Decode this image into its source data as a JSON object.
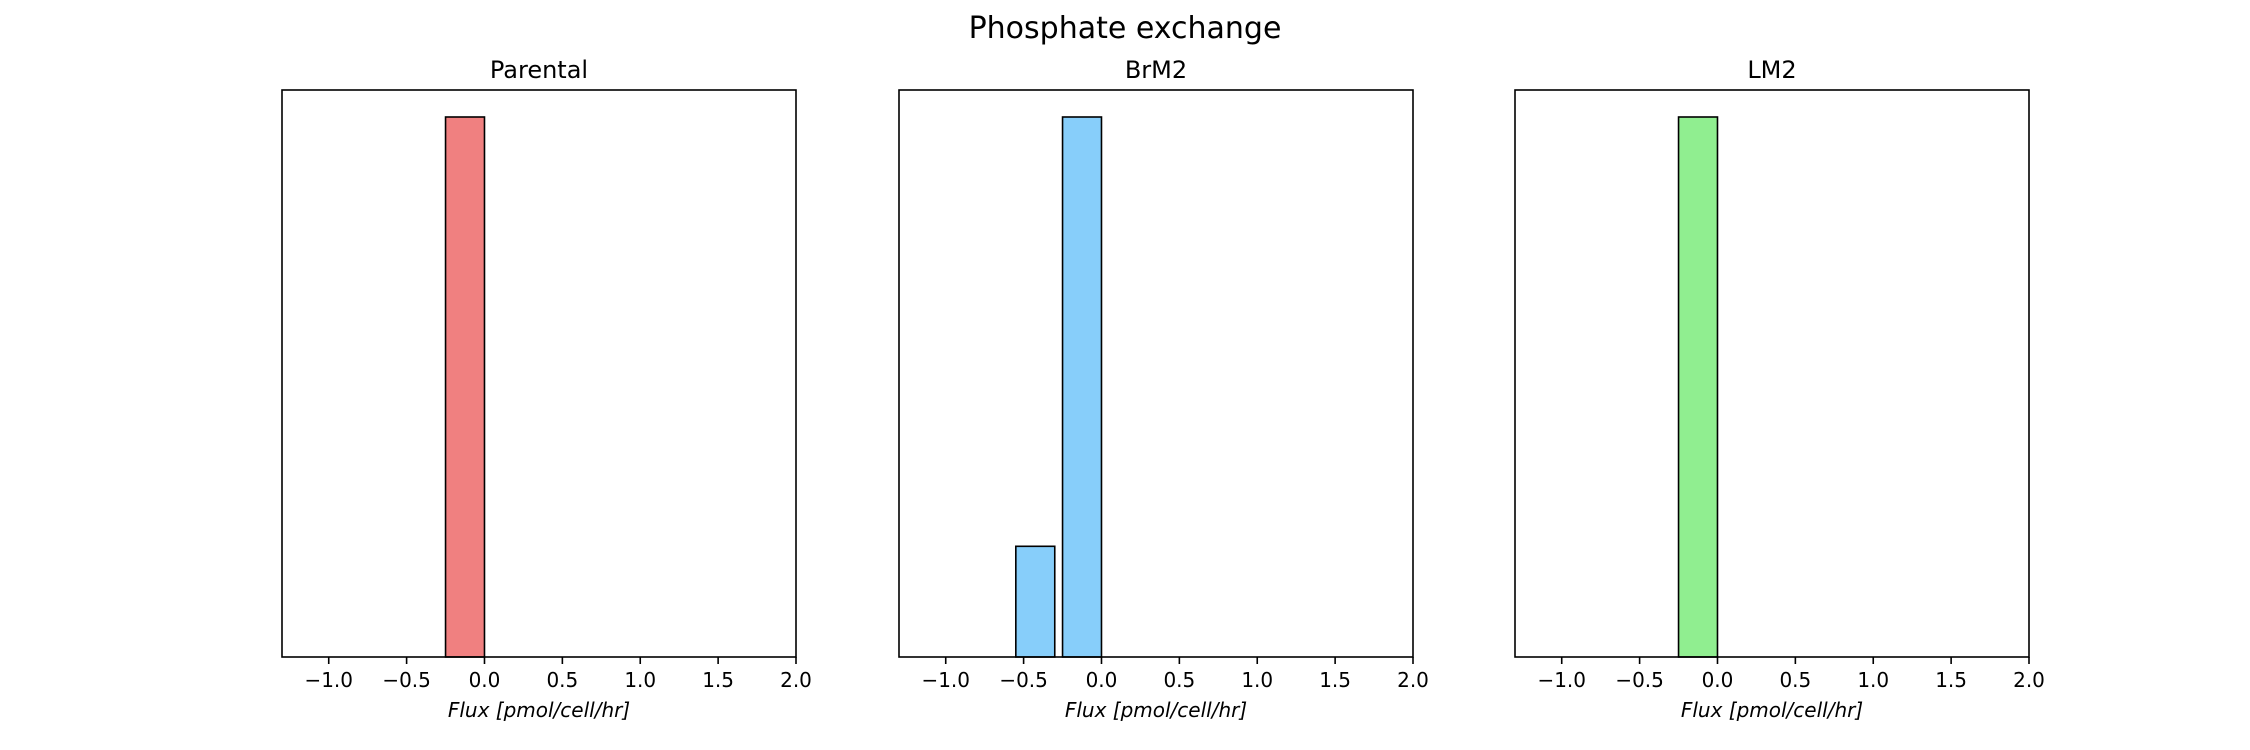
{
  "figure": {
    "title": "Phosphate exchange"
  },
  "chart_data": [
    {
      "type": "bar",
      "title": "Parental",
      "xlabel": "Flux [pmol/cell/hr]",
      "ylabel": "",
      "xlim": [
        -1.3,
        2.0
      ],
      "ylim": [
        0,
        1.05
      ],
      "xticks": [
        -1.0,
        -0.5,
        0.0,
        0.5,
        1.0,
        1.5,
        2.0
      ],
      "xtick_labels": [
        "−1.0",
        "−0.5",
        "0.0",
        "0.5",
        "1.0",
        "1.5",
        "2.0"
      ],
      "bin_width": 0.25,
      "bins": [
        {
          "left": -0.25,
          "right": 0.0,
          "value": 1.0
        }
      ],
      "color": "#f08080"
    },
    {
      "type": "bar",
      "title": "BrM2",
      "xlabel": "Flux [pmol/cell/hr]",
      "ylabel": "",
      "xlim": [
        -1.3,
        2.0
      ],
      "ylim": [
        0,
        1.05
      ],
      "xticks": [
        -1.0,
        -0.5,
        0.0,
        0.5,
        1.0,
        1.5,
        2.0
      ],
      "xtick_labels": [
        "−1.0",
        "−0.5",
        "0.0",
        "0.5",
        "1.0",
        "1.5",
        "2.0"
      ],
      "bin_width": 0.25,
      "bins": [
        {
          "left": -0.55,
          "right": -0.3,
          "value": 0.205
        },
        {
          "left": -0.25,
          "right": 0.0,
          "value": 1.0
        }
      ],
      "color": "#87cefa"
    },
    {
      "type": "bar",
      "title": "LM2",
      "xlabel": "Flux [pmol/cell/hr]",
      "ylabel": "",
      "xlim": [
        -1.3,
        2.0
      ],
      "ylim": [
        0,
        1.05
      ],
      "xticks": [
        -1.0,
        -0.5,
        0.0,
        0.5,
        1.0,
        1.5,
        2.0
      ],
      "xtick_labels": [
        "−1.0",
        "−0.5",
        "0.0",
        "0.5",
        "1.0",
        "1.5",
        "2.0"
      ],
      "bin_width": 0.25,
      "bins": [
        {
          "left": -0.25,
          "right": 0.0,
          "value": 1.0
        }
      ],
      "color": "#90ee90"
    }
  ]
}
